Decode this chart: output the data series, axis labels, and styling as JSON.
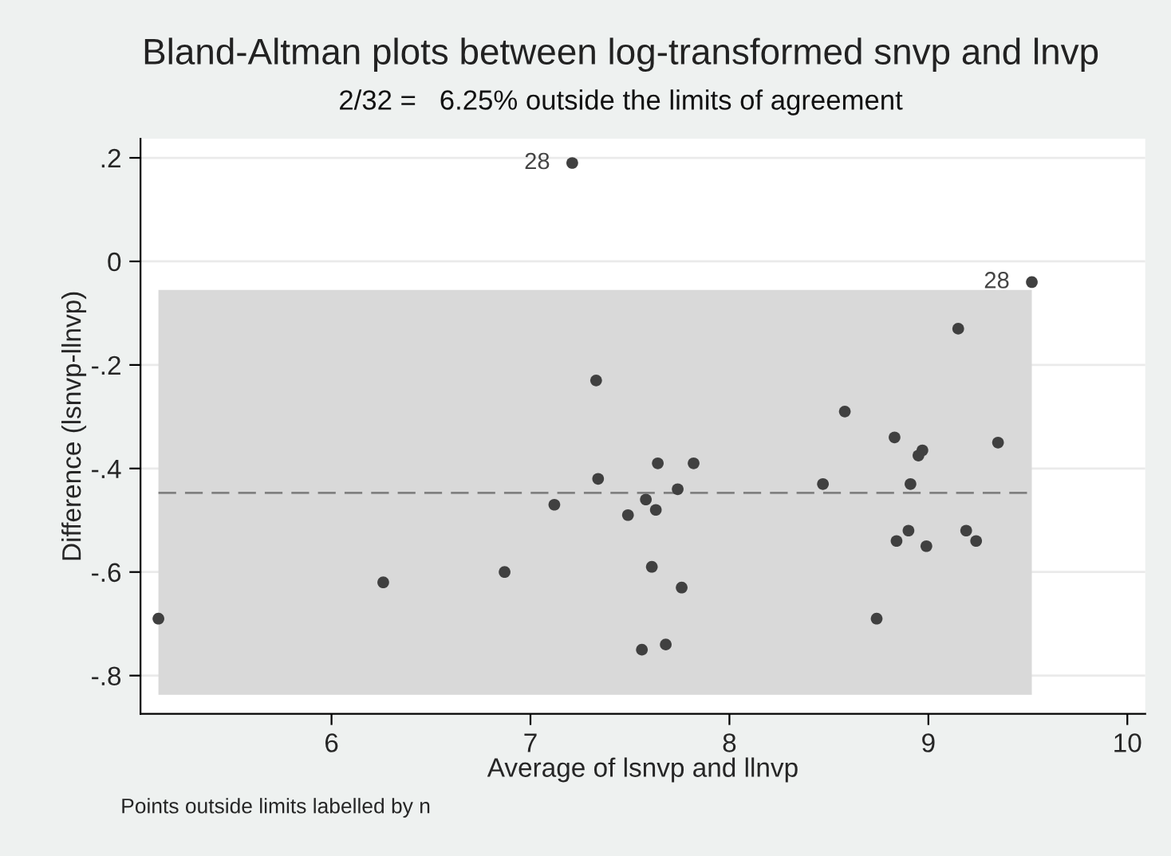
{
  "chart_data": {
    "type": "scatter",
    "title": "Bland-Altman plots between log-transformed snvp and lnvp",
    "subtitle": "2/32 =   6.25% outside the limits of agreement",
    "xlabel": "Average of lsnvp and llnvp",
    "ylabel": "Difference (lsnvp-llnvp)",
    "series": [
      {
        "color": "#404040",
        "x": [
          7.21,
          7.33,
          7.34,
          7.12,
          7.49,
          7.58,
          6.87,
          6.26,
          5.13,
          7.56,
          9.52,
          9.15,
          8.58,
          8.83,
          9.35,
          8.97,
          8.95,
          7.64,
          7.82,
          7.74,
          8.47,
          8.91,
          7.63,
          8.9,
          9.19,
          9.24,
          8.84,
          8.99,
          7.61,
          7.76,
          8.74,
          7.68
        ],
        "values": [
          0.19,
          -0.23,
          -0.42,
          -0.47,
          -0.49,
          -0.46,
          -0.6,
          -0.62,
          -0.69,
          -0.75,
          -0.04,
          -0.13,
          -0.29,
          -0.34,
          -0.35,
          -0.365,
          -0.375,
          -0.39,
          -0.39,
          -0.44,
          -0.43,
          -0.43,
          -0.48,
          -0.52,
          -0.52,
          -0.54,
          -0.54,
          -0.55,
          -0.59,
          -0.63,
          -0.69,
          -0.74
        ]
      }
    ],
    "marker": "circle",
    "xlim": [
      5.04,
      10.09
    ],
    "xticks": [
      6,
      7,
      8,
      9,
      10
    ],
    "ylim": [
      -0.874,
      0.237
    ],
    "yticks": [
      {
        "value": 0.2,
        "label": ".2"
      },
      0,
      {
        "value": -0.2,
        "label": "-.2"
      },
      {
        "value": -0.4,
        "label": "-.4"
      },
      {
        "value": -0.6,
        "label": "-.6"
      },
      {
        "value": -0.8,
        "label": "-.8"
      }
    ],
    "grid": "y",
    "ref_lines": [
      {
        "axis": "y",
        "value": -0.447,
        "color": "#808080",
        "line_style": "dashed"
      }
    ],
    "bands": [
      {
        "axis": "y",
        "from": -0.837,
        "to": -0.055,
        "color": "#d9d9d9"
      }
    ],
    "annotations": [
      {
        "text": "28",
        "x": 7.21,
        "y": 0.19
      },
      {
        "text": "28",
        "x": 9.52,
        "y": -0.04
      },
      "Points outside limits labelled by n"
    ]
  }
}
